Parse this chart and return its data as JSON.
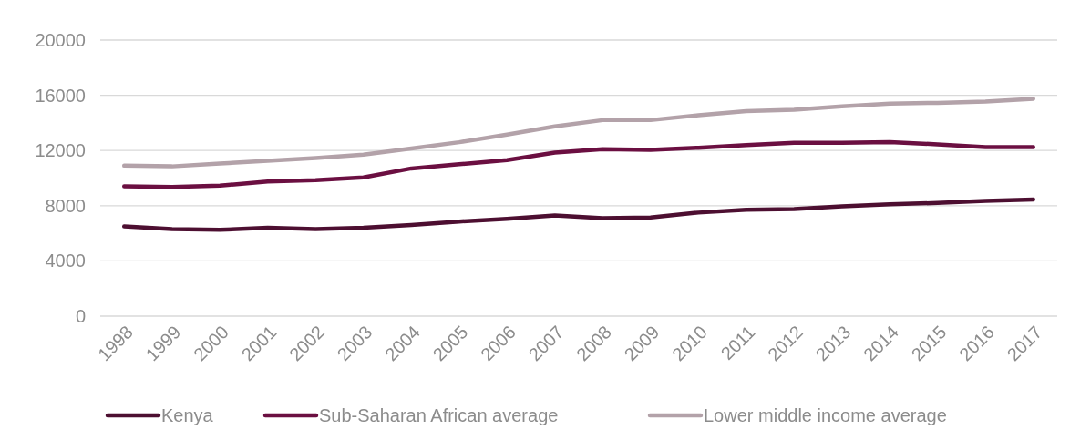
{
  "chart_data": {
    "type": "line",
    "categories": [
      "1998",
      "1999",
      "2000",
      "2001",
      "2002",
      "2003",
      "2004",
      "2005",
      "2006",
      "2007",
      "2008",
      "2009",
      "2010",
      "2011",
      "2012",
      "2013",
      "2014",
      "2015",
      "2016",
      "2017"
    ],
    "series": [
      {
        "name": "Kenya",
        "color": "#4d0f31",
        "values": [
          6500,
          6300,
          6250,
          6400,
          6300,
          6400,
          6600,
          6850,
          7050,
          7300,
          7100,
          7150,
          7500,
          7700,
          7750,
          7950,
          8100,
          8200,
          8350,
          8450
        ]
      },
      {
        "name": "Sub-Saharan African average",
        "color": "#6b0f41",
        "values": [
          9400,
          9350,
          9450,
          9750,
          9850,
          10050,
          10700,
          11000,
          11300,
          11850,
          12100,
          12050,
          12200,
          12400,
          12550,
          12550,
          12600,
          12450,
          12250,
          12250
        ]
      },
      {
        "name": "Lower middle income average",
        "color": "#b3a2a9",
        "values": [
          10900,
          10850,
          11050,
          11250,
          11450,
          11700,
          12150,
          12600,
          13150,
          13750,
          14200,
          14200,
          14550,
          14850,
          14950,
          15200,
          15400,
          15450,
          15550,
          15750
        ]
      }
    ],
    "ylim": [
      0,
      20000
    ],
    "yticks": [
      0,
      4000,
      8000,
      12000,
      16000,
      20000
    ],
    "grid": "y",
    "legend": "bottom",
    "marker": "none",
    "line_style": "solid"
  }
}
